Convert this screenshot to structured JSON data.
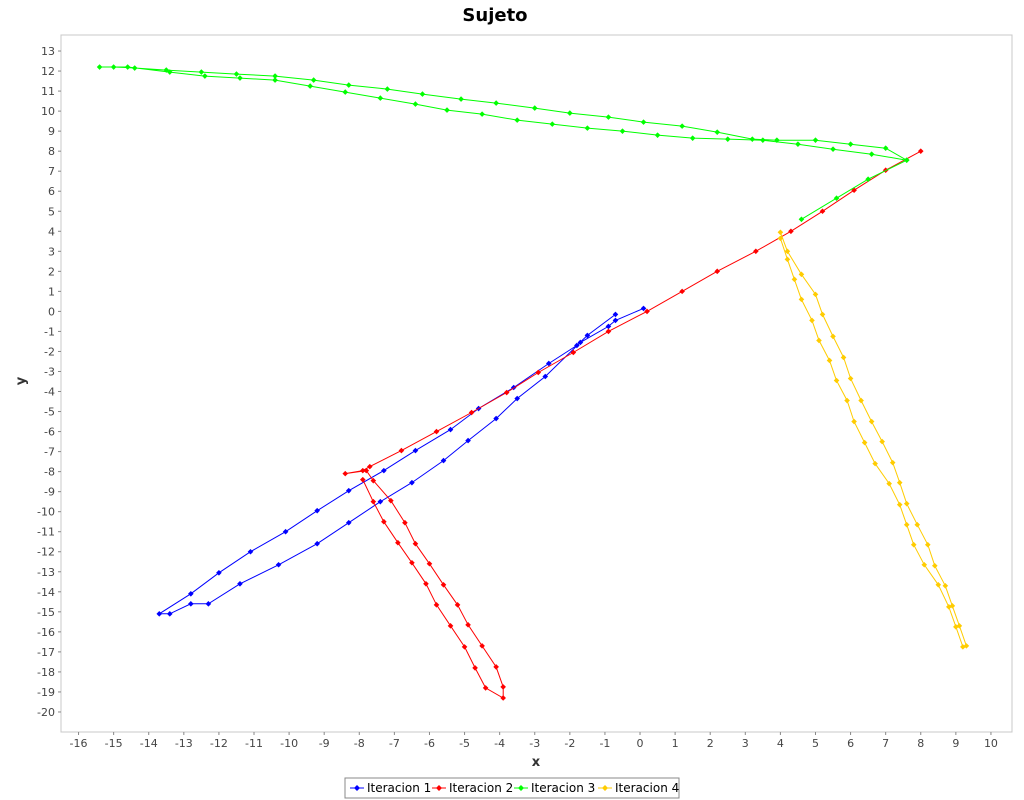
{
  "chart_data": {
    "type": "line",
    "title": "Sujeto",
    "xlabel": "x",
    "ylabel": "y",
    "xlim": [
      -16.5,
      10.6
    ],
    "ylim": [
      -21.0,
      13.8
    ],
    "xticks": [
      -16,
      -15,
      -14,
      -13,
      -12,
      -11,
      -10,
      -9,
      -8,
      -7,
      -6,
      -5,
      -4,
      -3,
      -2,
      -1,
      0,
      1,
      2,
      3,
      4,
      5,
      6,
      7,
      8,
      9,
      10
    ],
    "yticks": [
      13,
      12,
      11,
      10,
      9,
      8,
      7,
      6,
      5,
      4,
      3,
      2,
      1,
      0,
      -1,
      -2,
      -3,
      -4,
      -5,
      -6,
      -7,
      -8,
      -9,
      -10,
      -11,
      -12,
      -13,
      -14,
      -15,
      -16,
      -17,
      -18,
      -19,
      -20
    ],
    "grid": false,
    "legend_position": "bottom",
    "series": [
      {
        "name": "Iteracion 1",
        "color": "#0000ff",
        "points": [
          [
            0.1,
            0.15
          ],
          [
            -0.7,
            -0.45
          ],
          [
            -0.9,
            -0.75
          ],
          [
            -1.7,
            -1.55
          ],
          [
            -2.7,
            -3.25
          ],
          [
            -3.5,
            -4.35
          ],
          [
            -4.1,
            -5.35
          ],
          [
            -4.9,
            -6.45
          ],
          [
            -5.6,
            -7.45
          ],
          [
            -6.5,
            -8.55
          ],
          [
            -7.4,
            -9.5
          ],
          [
            -8.3,
            -10.55
          ],
          [
            -9.2,
            -11.6
          ],
          [
            -10.3,
            -12.65
          ],
          [
            -11.4,
            -13.6
          ],
          [
            -12.3,
            -14.6
          ],
          [
            -12.8,
            -14.6
          ],
          [
            -13.4,
            -15.1
          ],
          [
            -13.7,
            -15.1
          ],
          [
            -12.8,
            -14.1
          ],
          [
            -12.0,
            -13.05
          ],
          [
            -11.1,
            -12.0
          ],
          [
            -10.1,
            -11.0
          ],
          [
            -9.2,
            -9.95
          ],
          [
            -8.3,
            -8.95
          ],
          [
            -7.3,
            -7.95
          ],
          [
            -6.4,
            -6.95
          ],
          [
            -5.4,
            -5.9
          ],
          [
            -4.6,
            -4.85
          ],
          [
            -3.6,
            -3.8
          ],
          [
            -2.6,
            -2.6
          ],
          [
            -1.8,
            -1.7
          ],
          [
            -1.5,
            -1.2
          ],
          [
            -0.7,
            -0.15
          ]
        ]
      },
      {
        "name": "Iteracion 2",
        "color": "#ff0000",
        "points": [
          [
            8.0,
            8.0
          ],
          [
            7.0,
            7.05
          ],
          [
            6.1,
            6.05
          ],
          [
            5.2,
            5.0
          ],
          [
            4.3,
            4.0
          ],
          [
            3.3,
            3.0
          ],
          [
            2.2,
            2.0
          ],
          [
            1.2,
            1.0
          ],
          [
            0.2,
            0.0
          ],
          [
            -0.9,
            -1.0
          ],
          [
            -1.9,
            -2.05
          ],
          [
            -2.9,
            -3.05
          ],
          [
            -3.8,
            -4.05
          ],
          [
            -4.8,
            -5.05
          ],
          [
            -5.8,
            -6.0
          ],
          [
            -6.8,
            -6.95
          ],
          [
            -7.7,
            -7.75
          ],
          [
            -7.9,
            -7.95
          ],
          [
            -8.4,
            -8.1
          ],
          [
            -7.8,
            -7.95
          ],
          [
            -7.6,
            -8.45
          ],
          [
            -7.1,
            -9.45
          ],
          [
            -6.7,
            -10.55
          ],
          [
            -6.4,
            -11.6
          ],
          [
            -6.0,
            -12.6
          ],
          [
            -5.6,
            -13.65
          ],
          [
            -5.2,
            -14.65
          ],
          [
            -4.9,
            -15.65
          ],
          [
            -4.5,
            -16.7
          ],
          [
            -4.1,
            -17.75
          ],
          [
            -3.9,
            -18.75
          ],
          [
            -3.9,
            -19.3
          ],
          [
            -4.4,
            -18.8
          ],
          [
            -4.7,
            -17.8
          ],
          [
            -5.0,
            -16.75
          ],
          [
            -5.4,
            -15.7
          ],
          [
            -5.8,
            -14.65
          ],
          [
            -6.1,
            -13.6
          ],
          [
            -6.5,
            -12.55
          ],
          [
            -6.9,
            -11.55
          ],
          [
            -7.3,
            -10.5
          ],
          [
            -7.6,
            -9.5
          ],
          [
            -7.9,
            -8.4
          ]
        ]
      },
      {
        "name": "Iteracion 3",
        "color": "#00ff00",
        "points": [
          [
            4.6,
            4.6
          ],
          [
            5.6,
            5.65
          ],
          [
            6.5,
            6.6
          ],
          [
            7.6,
            7.55
          ],
          [
            7.0,
            8.15
          ],
          [
            6.0,
            8.35
          ],
          [
            5.0,
            8.55
          ],
          [
            3.9,
            8.55
          ],
          [
            3.2,
            8.6
          ],
          [
            2.2,
            8.95
          ],
          [
            1.2,
            9.25
          ],
          [
            0.1,
            9.45
          ],
          [
            -0.9,
            9.7
          ],
          [
            -2.0,
            9.9
          ],
          [
            -3.0,
            10.15
          ],
          [
            -4.1,
            10.4
          ],
          [
            -5.1,
            10.6
          ],
          [
            -6.2,
            10.85
          ],
          [
            -7.2,
            11.1
          ],
          [
            -8.3,
            11.3
          ],
          [
            -9.3,
            11.55
          ],
          [
            -10.4,
            11.75
          ],
          [
            -11.5,
            11.85
          ],
          [
            -12.5,
            11.95
          ],
          [
            -13.5,
            12.05
          ],
          [
            -14.4,
            12.15
          ],
          [
            -15.0,
            12.2
          ],
          [
            -15.4,
            12.2
          ],
          [
            -14.6,
            12.2
          ],
          [
            -13.4,
            11.95
          ],
          [
            -12.4,
            11.75
          ],
          [
            -11.4,
            11.65
          ],
          [
            -10.4,
            11.55
          ],
          [
            -9.4,
            11.25
          ],
          [
            -8.4,
            10.95
          ],
          [
            -7.4,
            10.65
          ],
          [
            -6.4,
            10.35
          ],
          [
            -5.5,
            10.05
          ],
          [
            -4.5,
            9.85
          ],
          [
            -3.5,
            9.55
          ],
          [
            -2.5,
            9.35
          ],
          [
            -1.5,
            9.15
          ],
          [
            -0.5,
            9.0
          ],
          [
            0.5,
            8.8
          ],
          [
            1.5,
            8.65
          ],
          [
            2.5,
            8.6
          ],
          [
            3.5,
            8.55
          ],
          [
            4.5,
            8.35
          ],
          [
            5.5,
            8.1
          ],
          [
            6.6,
            7.85
          ],
          [
            7.6,
            7.55
          ]
        ]
      },
      {
        "name": "Iteracion 4",
        "color": "#ffcc00",
        "points": [
          [
            4.0,
            3.95
          ],
          [
            4.2,
            3.0
          ],
          [
            4.6,
            1.85
          ],
          [
            5.0,
            0.85
          ],
          [
            5.2,
            -0.15
          ],
          [
            5.5,
            -1.25
          ],
          [
            5.8,
            -2.3
          ],
          [
            6.0,
            -3.35
          ],
          [
            6.3,
            -4.45
          ],
          [
            6.6,
            -5.5
          ],
          [
            6.9,
            -6.5
          ],
          [
            7.2,
            -7.55
          ],
          [
            7.4,
            -8.55
          ],
          [
            7.6,
            -9.6
          ],
          [
            7.9,
            -10.65
          ],
          [
            8.2,
            -11.65
          ],
          [
            8.4,
            -12.7
          ],
          [
            8.7,
            -13.7
          ],
          [
            8.9,
            -14.7
          ],
          [
            9.1,
            -15.7
          ],
          [
            9.3,
            -16.7
          ],
          [
            9.2,
            -16.75
          ],
          [
            9.0,
            -15.75
          ],
          [
            8.8,
            -14.75
          ],
          [
            8.5,
            -13.65
          ],
          [
            8.1,
            -12.65
          ],
          [
            7.8,
            -11.65
          ],
          [
            7.6,
            -10.65
          ],
          [
            7.4,
            -9.65
          ],
          [
            7.1,
            -8.6
          ],
          [
            6.7,
            -7.6
          ],
          [
            6.4,
            -6.55
          ],
          [
            6.1,
            -5.5
          ],
          [
            5.9,
            -4.45
          ],
          [
            5.6,
            -3.45
          ],
          [
            5.4,
            -2.45
          ],
          [
            5.1,
            -1.45
          ],
          [
            4.9,
            -0.45
          ],
          [
            4.6,
            0.6
          ],
          [
            4.4,
            1.6
          ],
          [
            4.2,
            2.6
          ],
          [
            4.0,
            3.65
          ]
        ]
      }
    ]
  }
}
